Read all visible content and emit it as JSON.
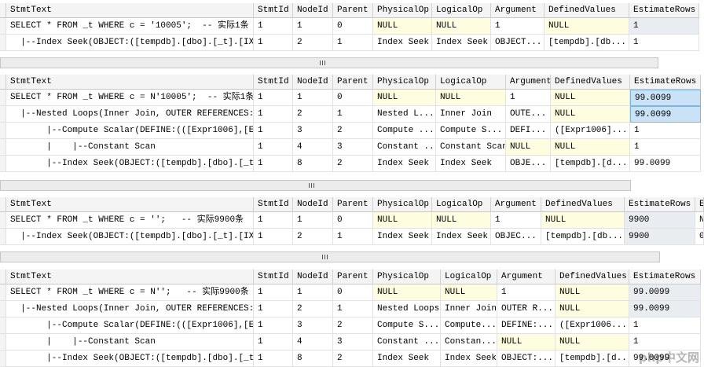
{
  "grids": [
    {
      "columns": [
        "StmtText",
        "StmtId",
        "NodeId",
        "Parent",
        "PhysicalOp",
        "LogicalOp",
        "Argument",
        "DefinedValues",
        "EstimateRows"
      ],
      "rows": [
        [
          "SELECT * FROM _t WHERE c = '10005';  -- 实际1条",
          "1",
          "1",
          "0",
          "NULL",
          "NULL",
          "1",
          "NULL",
          "1"
        ],
        [
          "  |--Index Seek(OBJECT:([tempdb].[dbo].[_t].[IX...",
          "1",
          "2",
          "1",
          "Index Seek",
          "Index Seek",
          "OBJECT...",
          "[tempdb].[db...",
          "1"
        ]
      ]
    },
    {
      "columns": [
        "StmtText",
        "StmtId",
        "NodeId",
        "Parent",
        "PhysicalOp",
        "LogicalOp",
        "Argument",
        "DefinedValues",
        "EstimateRows"
      ],
      "rows": [
        [
          "SELECT * FROM _t WHERE c = N'10005';  -- 实际1条",
          "1",
          "1",
          "0",
          "NULL",
          "NULL",
          "1",
          "NULL",
          "99.0099"
        ],
        [
          "  |--Nested Loops(Inner Join, OUTER REFERENCES:...",
          "1",
          "2",
          "1",
          "Nested L...",
          "Inner Join",
          "OUTE...",
          "NULL",
          "99.0099"
        ],
        [
          "       |--Compute Scalar(DEFINE:(([Expr1006],[E...",
          "1",
          "3",
          "2",
          "Compute ...",
          "Compute S...",
          "DEFI...",
          "([Expr1006]...",
          "1"
        ],
        [
          "       |    |--Constant Scan",
          "1",
          "4",
          "3",
          "Constant ...",
          "Constant Scan",
          "NULL",
          "NULL",
          "1"
        ],
        [
          "       |--Index Seek(OBJECT:([tempdb].[dbo].[_t...",
          "1",
          "8",
          "2",
          "Index Seek",
          "Index Seek",
          "OBJE...",
          "[tempdb].[d...",
          "99.0099"
        ]
      ]
    },
    {
      "columns": [
        "StmtText",
        "StmtId",
        "NodeId",
        "Parent",
        "PhysicalOp",
        "LogicalOp",
        "Argument",
        "DefinedValues",
        "EstimateRows",
        "E"
      ],
      "rows": [
        [
          "SELECT * FROM _t WHERE c = '';   -- 实际9900条",
          "1",
          "1",
          "0",
          "NULL",
          "NULL",
          "1",
          "NULL",
          "9900",
          "N"
        ],
        [
          "  |--Index Seek(OBJECT:([tempdb].[dbo].[_t].[IX...",
          "1",
          "2",
          "1",
          "Index Seek",
          "Index Seek",
          "OBJEC...",
          "[tempdb].[db...",
          "9900",
          "0"
        ]
      ]
    },
    {
      "columns": [
        "StmtText",
        "StmtId",
        "NodeId",
        "Parent",
        "PhysicalOp",
        "LogicalOp",
        "Argument",
        "DefinedValues",
        "EstimateRows"
      ],
      "rows": [
        [
          "SELECT * FROM _t WHERE c = N'';   -- 实际9900条",
          "1",
          "1",
          "0",
          "NULL",
          "NULL",
          "1",
          "NULL",
          "99.0099"
        ],
        [
          "  |--Nested Loops(Inner Join, OUTER REFERENCES:...",
          "1",
          "2",
          "1",
          "Nested Loops",
          "Inner Join",
          "OUTER R...",
          "NULL",
          "99.0099"
        ],
        [
          "       |--Compute Scalar(DEFINE:(([Expr1006],[E...",
          "1",
          "3",
          "2",
          "Compute S...",
          "Compute...",
          "DEFINE:...",
          "([Expr1006...",
          "1"
        ],
        [
          "       |    |--Constant Scan",
          "1",
          "4",
          "3",
          "Constant ...",
          "Constan...",
          "NULL",
          "NULL",
          "1"
        ],
        [
          "       |--Index Seek(OBJECT:([tempdb].[dbo].[_t...",
          "1",
          "8",
          "2",
          "Index Seek",
          "Index Seek",
          "OBJECT:...",
          "[tempdb].[d...",
          "99.0099"
        ]
      ]
    }
  ],
  "watermark": "php中文网"
}
